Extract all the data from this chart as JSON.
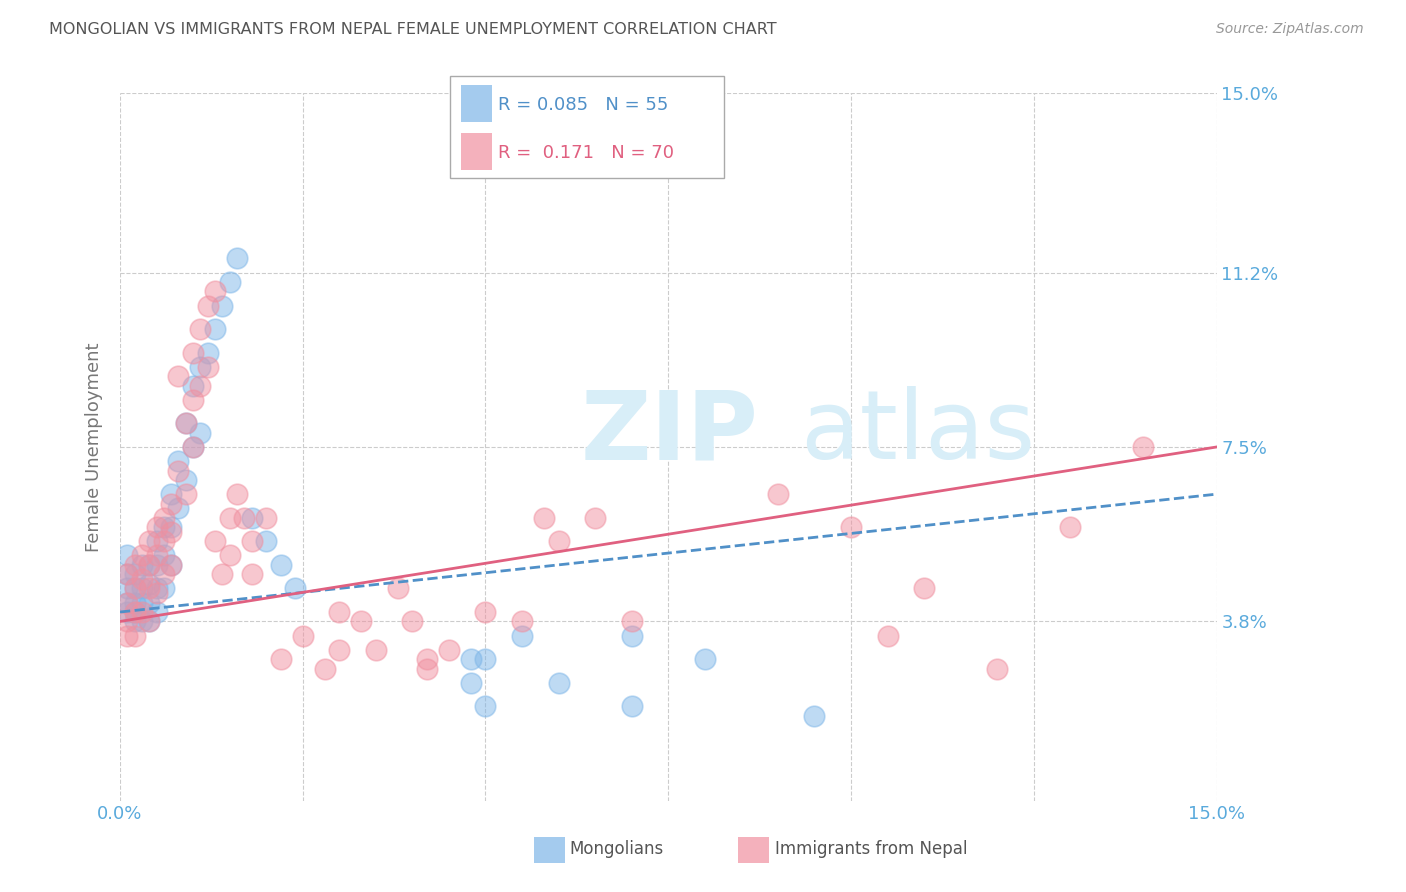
{
  "title": "MONGOLIAN VS IMMIGRANTS FROM NEPAL FEMALE UNEMPLOYMENT CORRELATION CHART",
  "source": "Source: ZipAtlas.com",
  "ylabel": "Female Unemployment",
  "y_tick_labels_right": [
    "15.0%",
    "11.2%",
    "7.5%",
    "3.8%"
  ],
  "y_tick_values": [
    0.15,
    0.112,
    0.075,
    0.038
  ],
  "x_grid_vals": [
    0.0,
    0.025,
    0.05,
    0.075,
    0.1,
    0.125,
    0.15
  ],
  "xlim": [
    0.0,
    0.15
  ],
  "ylim": [
    0.0,
    0.15
  ],
  "series1_label": "Mongolians",
  "series1_color": "#7EB6E8",
  "series1_R": "0.085",
  "series1_N": "55",
  "series2_label": "Immigrants from Nepal",
  "series2_color": "#F090A0",
  "series2_R": "0.171",
  "series2_N": "70",
  "line1_color": "#5090C8",
  "line2_color": "#E06080",
  "watermark": "ZIPatlas",
  "watermark_color": "#D8EEF8",
  "bg_color": "#FFFFFF",
  "grid_color": "#CCCCCC",
  "axis_label_color": "#5AAADC",
  "title_color": "#555555",
  "series1_scatter_x": [
    0.001,
    0.001,
    0.001,
    0.001,
    0.001,
    0.002,
    0.002,
    0.002,
    0.002,
    0.002,
    0.003,
    0.003,
    0.003,
    0.003,
    0.004,
    0.004,
    0.004,
    0.004,
    0.005,
    0.005,
    0.005,
    0.005,
    0.006,
    0.006,
    0.006,
    0.007,
    0.007,
    0.007,
    0.008,
    0.008,
    0.009,
    0.009,
    0.01,
    0.01,
    0.011,
    0.011,
    0.012,
    0.013,
    0.014,
    0.015,
    0.016,
    0.018,
    0.02,
    0.022,
    0.024,
    0.048,
    0.048,
    0.05,
    0.05,
    0.055,
    0.06,
    0.07,
    0.07,
    0.08,
    0.095
  ],
  "series1_scatter_y": [
    0.04,
    0.042,
    0.045,
    0.048,
    0.052,
    0.04,
    0.042,
    0.045,
    0.048,
    0.038,
    0.05,
    0.045,
    0.042,
    0.038,
    0.05,
    0.046,
    0.042,
    0.038,
    0.055,
    0.05,
    0.045,
    0.04,
    0.058,
    0.052,
    0.045,
    0.065,
    0.058,
    0.05,
    0.072,
    0.062,
    0.08,
    0.068,
    0.088,
    0.075,
    0.092,
    0.078,
    0.095,
    0.1,
    0.105,
    0.11,
    0.115,
    0.06,
    0.055,
    0.05,
    0.045,
    0.03,
    0.025,
    0.03,
    0.02,
    0.035,
    0.025,
    0.035,
    0.02,
    0.03,
    0.018
  ],
  "series2_scatter_x": [
    0.001,
    0.001,
    0.001,
    0.001,
    0.002,
    0.002,
    0.002,
    0.002,
    0.003,
    0.003,
    0.003,
    0.004,
    0.004,
    0.004,
    0.004,
    0.005,
    0.005,
    0.005,
    0.006,
    0.006,
    0.006,
    0.007,
    0.007,
    0.007,
    0.008,
    0.008,
    0.009,
    0.009,
    0.01,
    0.01,
    0.01,
    0.011,
    0.011,
    0.012,
    0.012,
    0.013,
    0.013,
    0.014,
    0.015,
    0.015,
    0.016,
    0.017,
    0.018,
    0.018,
    0.02,
    0.022,
    0.025,
    0.028,
    0.03,
    0.03,
    0.033,
    0.035,
    0.038,
    0.04,
    0.042,
    0.042,
    0.045,
    0.05,
    0.055,
    0.058,
    0.06,
    0.065,
    0.07,
    0.09,
    0.1,
    0.105,
    0.11,
    0.12,
    0.13,
    0.14
  ],
  "series2_scatter_y": [
    0.048,
    0.042,
    0.038,
    0.035,
    0.05,
    0.045,
    0.04,
    0.035,
    0.052,
    0.047,
    0.04,
    0.055,
    0.05,
    0.045,
    0.038,
    0.058,
    0.052,
    0.044,
    0.06,
    0.055,
    0.048,
    0.063,
    0.057,
    0.05,
    0.09,
    0.07,
    0.08,
    0.065,
    0.095,
    0.085,
    0.075,
    0.1,
    0.088,
    0.105,
    0.092,
    0.108,
    0.055,
    0.048,
    0.06,
    0.052,
    0.065,
    0.06,
    0.055,
    0.048,
    0.06,
    0.03,
    0.035,
    0.028,
    0.04,
    0.032,
    0.038,
    0.032,
    0.045,
    0.038,
    0.03,
    0.028,
    0.032,
    0.04,
    0.038,
    0.06,
    0.055,
    0.06,
    0.038,
    0.065,
    0.058,
    0.035,
    0.045,
    0.028,
    0.058,
    0.075
  ],
  "trend1_x0": 0.0,
  "trend1_y0": 0.04,
  "trend1_x1": 0.15,
  "trend1_y1": 0.065,
  "trend2_x0": 0.0,
  "trend2_y0": 0.038,
  "trend2_x1": 0.15,
  "trend2_y1": 0.075
}
